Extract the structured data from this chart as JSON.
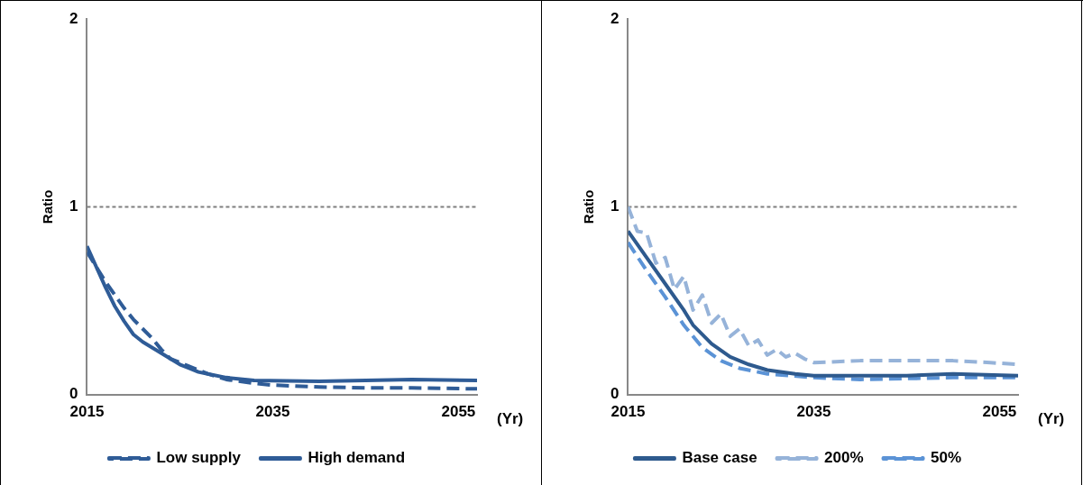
{
  "chart_data": [
    {
      "type": "line",
      "xlabel": "(Yr)",
      "ylabel": "Ratio",
      "xlim": [
        2015,
        2057
      ],
      "xticks": [
        2015,
        2035,
        2055
      ],
      "ylim": [
        0,
        2
      ],
      "yticks": [
        0,
        1,
        2
      ],
      "grid": false,
      "legend": "bottom",
      "marker": "none",
      "ref_lines": [
        {
          "axis": "y",
          "value": 1,
          "color": "#7f7f7f",
          "line_style": "dotted"
        }
      ],
      "series": [
        {
          "name": "Low supply",
          "color": "#2f5c97",
          "line_style": "dashed",
          "x": [
            2015,
            2016,
            2017,
            2018,
            2019,
            2020,
            2021,
            2022,
            2023,
            2024,
            2025,
            2026,
            2027,
            2028,
            2030,
            2033,
            2035,
            2040,
            2045,
            2050,
            2057
          ],
          "values": [
            0.76,
            0.68,
            0.6,
            0.53,
            0.46,
            0.4,
            0.35,
            0.3,
            0.24,
            0.19,
            0.17,
            0.15,
            0.13,
            0.11,
            0.08,
            0.06,
            0.05,
            0.04,
            0.035,
            0.035,
            0.03
          ]
        },
        {
          "name": "High demand",
          "color": "#2f5c97",
          "line_style": "solid",
          "x": [
            2015,
            2016,
            2017,
            2018,
            2019,
            2020,
            2021,
            2022,
            2023,
            2024,
            2025,
            2026,
            2027,
            2028,
            2030,
            2033,
            2040,
            2050,
            2057
          ],
          "values": [
            0.79,
            0.68,
            0.57,
            0.47,
            0.39,
            0.32,
            0.28,
            0.25,
            0.22,
            0.19,
            0.16,
            0.14,
            0.12,
            0.11,
            0.09,
            0.075,
            0.07,
            0.08,
            0.075
          ]
        }
      ]
    },
    {
      "type": "line",
      "xlabel": "(Yr)",
      "ylabel": "Ratio",
      "xlim": [
        2015,
        2057
      ],
      "xticks": [
        2015,
        2035,
        2055
      ],
      "ylim": [
        0,
        2
      ],
      "yticks": [
        0,
        1,
        2
      ],
      "grid": false,
      "legend": "bottom",
      "marker": "none",
      "ref_lines": [
        {
          "axis": "y",
          "value": 1,
          "color": "#7f7f7f",
          "line_style": "dotted"
        }
      ],
      "series": [
        {
          "name": "Base case",
          "color": "#2e5a8e",
          "line_style": "solid",
          "x": [
            2015,
            2017,
            2019,
            2021,
            2022,
            2024,
            2026,
            2028,
            2030,
            2033,
            2035,
            2040,
            2045,
            2050,
            2057
          ],
          "values": [
            0.87,
            0.73,
            0.59,
            0.45,
            0.37,
            0.27,
            0.2,
            0.16,
            0.13,
            0.11,
            0.1,
            0.1,
            0.1,
            0.11,
            0.1
          ]
        },
        {
          "name": "200%",
          "color": "#96b3d9",
          "line_style": "dashed",
          "x": [
            2015,
            2016,
            2017,
            2018,
            2019,
            2020,
            2021,
            2022,
            2023,
            2024,
            2025,
            2026,
            2027,
            2028,
            2029,
            2030,
            2031,
            2032,
            2033,
            2034,
            2035,
            2040,
            2045,
            2050,
            2054,
            2057
          ],
          "values": [
            1.0,
            0.87,
            0.86,
            0.7,
            0.73,
            0.56,
            0.63,
            0.45,
            0.53,
            0.38,
            0.43,
            0.31,
            0.35,
            0.26,
            0.29,
            0.21,
            0.24,
            0.2,
            0.22,
            0.19,
            0.17,
            0.18,
            0.18,
            0.18,
            0.17,
            0.16
          ]
        },
        {
          "name": "50%",
          "color": "#5b93d6",
          "line_style": "dashed",
          "x": [
            2015,
            2017,
            2019,
            2021,
            2023,
            2025,
            2027,
            2030,
            2035,
            2040,
            2050,
            2057
          ],
          "values": [
            0.81,
            0.66,
            0.52,
            0.37,
            0.25,
            0.18,
            0.14,
            0.11,
            0.09,
            0.08,
            0.09,
            0.09
          ]
        }
      ]
    }
  ]
}
